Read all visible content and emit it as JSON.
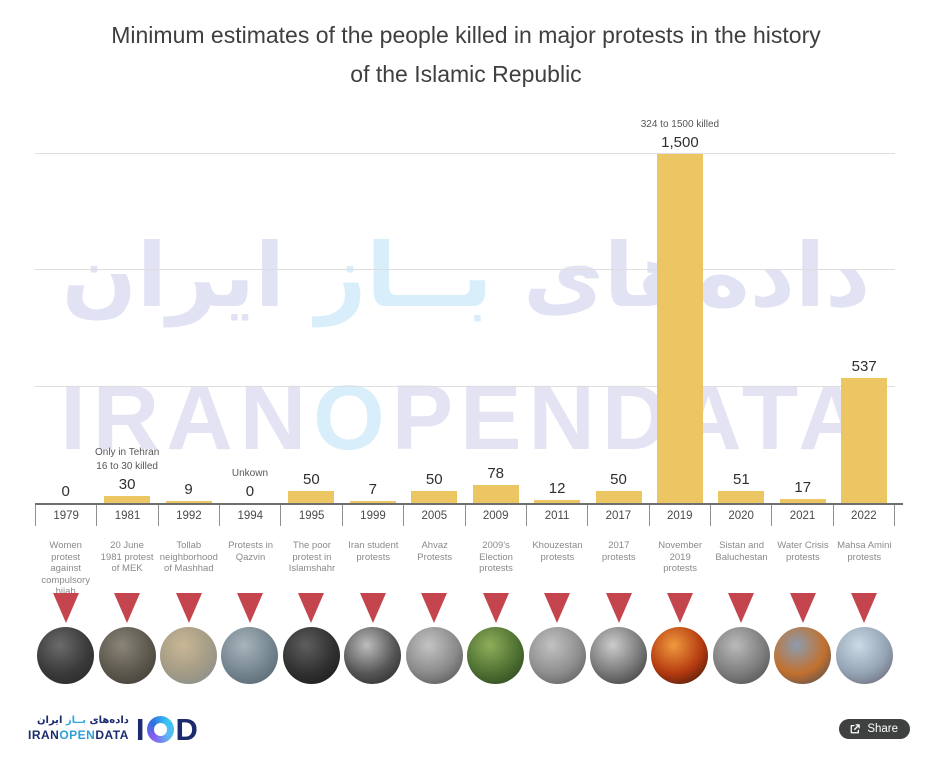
{
  "title": {
    "line1": "Minimum estimates of the people killed in major protests in the history",
    "line2": "of the Islamic Republic"
  },
  "watermark": {
    "fa_segments": [
      {
        "text": "داده‌های ",
        "color": "#e1e2f3"
      },
      {
        "text": "بــاز",
        "color": "#d9eefb"
      },
      {
        "text": " ایران",
        "color": "#e1e2f3"
      }
    ],
    "en_segments": [
      {
        "text": "IRAN",
        "color": "#e3e3f4"
      },
      {
        "text": "O",
        "color": "#d9eefb"
      },
      {
        "text": "PENDATA",
        "color": "#e3e3f4"
      }
    ]
  },
  "chart_data": {
    "type": "bar",
    "title": "Minimum estimates of the people killed in major protests in the history of the Islamic Republic",
    "xlabel": "",
    "ylabel": "",
    "ylim": [
      0,
      1500
    ],
    "gridlines": [
      500,
      1000,
      1500
    ],
    "legend": "none",
    "bar_color": "#ecc662",
    "marker_color": "#c5454e",
    "categories": [
      "1979",
      "1981",
      "1992",
      "1994",
      "1995",
      "1999",
      "2005",
      "2009",
      "2011",
      "2017",
      "2019",
      "2020",
      "2021",
      "2022"
    ],
    "values": [
      0,
      30,
      9,
      0,
      50,
      7,
      50,
      78,
      12,
      50,
      1500,
      51,
      17,
      537
    ],
    "value_labels": [
      "0",
      "30",
      "9",
      "0",
      "50",
      "7",
      "50",
      "78",
      "12",
      "50",
      "1,500",
      "51",
      "17",
      "537"
    ],
    "protest_names": [
      "Women protest against compulsory hijab",
      "20 June 1981 protest of MEK",
      "Tollab neighborhood of Mashhad",
      "Protests in Qazvin",
      "The poor protest in Islamshahr",
      "Iran student protests",
      "Ahvaz Protests",
      "2009's Election protests",
      "Khouzestan protests",
      "2017 protests",
      "November 2019 protests",
      "Sistan and Baluchestan",
      "Water Crisis protests",
      "Mahsa Amini protests"
    ],
    "annotations": [
      {
        "category": "1981",
        "lines": [
          "Only in Tehran",
          "16 to 30 killed"
        ]
      },
      {
        "category": "1994",
        "lines": [
          "Unkown"
        ]
      },
      {
        "category": "2019",
        "lines": [
          "324 to 1500 killed"
        ]
      }
    ],
    "photos": [
      {
        "name": "photo-1979-women-protest",
        "colors": [
          "#6b6b6b",
          "#3a3a3a",
          "#242424"
        ]
      },
      {
        "name": "photo-1981-mek-protest",
        "colors": [
          "#8a8578",
          "#5c574d",
          "#3b372f"
        ]
      },
      {
        "name": "photo-1992-mashhad",
        "colors": [
          "#c9b795",
          "#a39b85",
          "#7e8a92"
        ]
      },
      {
        "name": "photo-1994-qazvin",
        "colors": [
          "#a8b4bc",
          "#74848e",
          "#4e5e68"
        ]
      },
      {
        "name": "photo-1995-islamshahr",
        "colors": [
          "#5e5e5e",
          "#303030",
          "#161616"
        ]
      },
      {
        "name": "photo-1999-student-protests",
        "colors": [
          "#bdbdbd",
          "#565656",
          "#1f1f1f"
        ]
      },
      {
        "name": "photo-2005-ahvaz",
        "colors": [
          "#c4c4c4",
          "#8a8a8a",
          "#454545"
        ]
      },
      {
        "name": "photo-2009-election",
        "colors": [
          "#8fae5a",
          "#4e7032",
          "#233a1a"
        ]
      },
      {
        "name": "photo-2011-khouzestan",
        "colors": [
          "#c2c2c2",
          "#8e8e8e",
          "#4f4f4f"
        ]
      },
      {
        "name": "photo-2017-protests",
        "colors": [
          "#cccccc",
          "#777777",
          "#2e2e2e"
        ]
      },
      {
        "name": "photo-2019-november",
        "colors": [
          "#f09a3e",
          "#b43a10",
          "#26110a"
        ]
      },
      {
        "name": "photo-2020-sistan-baluchestan",
        "colors": [
          "#bababa",
          "#7d7d7d",
          "#454545"
        ]
      },
      {
        "name": "photo-2021-water-crisis",
        "colors": [
          "#8c9cae",
          "#c2702e",
          "#39485a"
        ]
      },
      {
        "name": "photo-2022-mahsa-amini",
        "colors": [
          "#ccdae6",
          "#94a4b4",
          "#5d5a68"
        ]
      }
    ]
  },
  "footer": {
    "logo": {
      "fa_segments": [
        {
          "text": "داده‌های ",
          "color": "#1c2b6e"
        },
        {
          "text": "بــاز",
          "color": "#35a8e0"
        },
        {
          "text": " ایران",
          "color": "#1c2b6e"
        }
      ],
      "en_segments": [
        {
          "text": "IRAN",
          "color": "#1c2b6e"
        },
        {
          "text": "OPEN",
          "color": "#2e9fd6"
        },
        {
          "text": "DATA",
          "color": "#1c2b6e"
        }
      ],
      "monogram": {
        "left": "I",
        "right": "D"
      }
    },
    "share_label": "Share"
  }
}
